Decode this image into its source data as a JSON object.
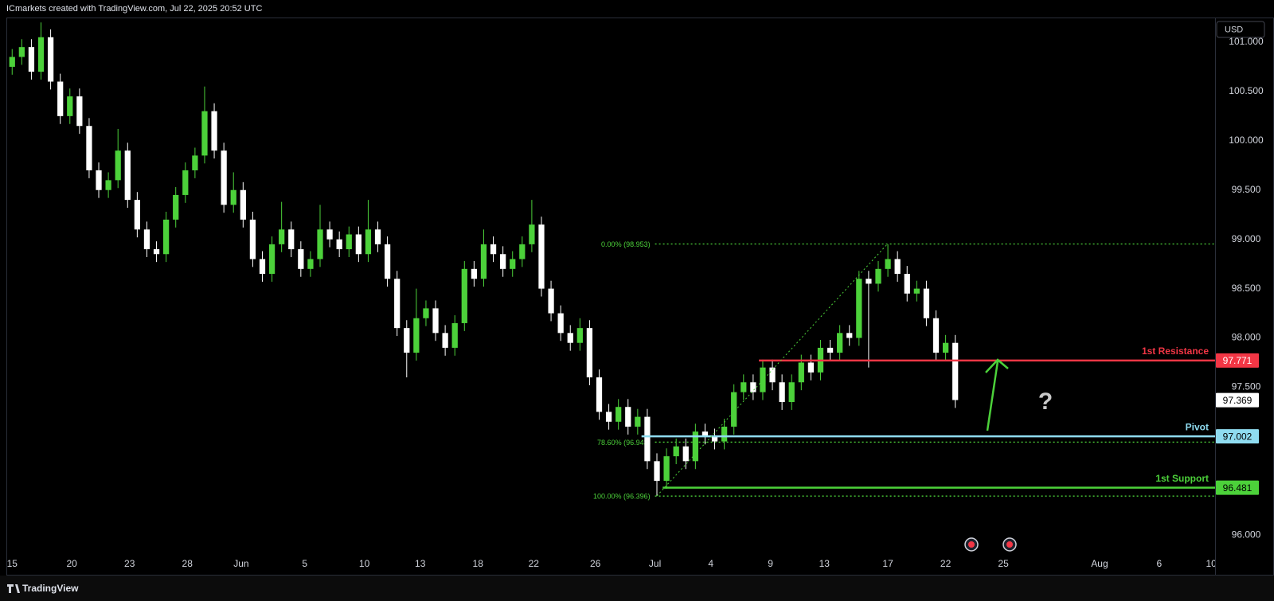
{
  "chart_data": {
    "type": "candlestick",
    "header": "ICmarkets created with TradingView.com, Jul 22, 2025 20:52 UTC",
    "brand": "TradingView",
    "currency": "USD",
    "up_color": "#4cd13a",
    "down_color": "#ffffff",
    "x": [
      0,
      0.5,
      1,
      1.5,
      2,
      2.5,
      3,
      3.5,
      4,
      4.5,
      5,
      5.5,
      6,
      6.5,
      7,
      7.5,
      8,
      8.5,
      9,
      9.5,
      10,
      10.5,
      11,
      11.5,
      12,
      12.5,
      13,
      13.5,
      14,
      14.5,
      15,
      15.5,
      16,
      16.5,
      17,
      17.5,
      18,
      18.5,
      19,
      19.5,
      20,
      20.5,
      21,
      21.5,
      22,
      22.5,
      23,
      23.5,
      24,
      24.5,
      25,
      25.5,
      26,
      26.5,
      27,
      27.5,
      28,
      28.5,
      29,
      29.5,
      30,
      30.5,
      31,
      31.5,
      32,
      32.5,
      33,
      33.5,
      34,
      34.5,
      35,
      35.5,
      36,
      36.5,
      37,
      37.5,
      38,
      38.5,
      39,
      39.5,
      40,
      40.5,
      41,
      41.5,
      42,
      42.5,
      43,
      43.5,
      44,
      44.5,
      45,
      45.5,
      46,
      46.5,
      47,
      47.5,
      48,
      48.5,
      49
    ],
    "open": [
      100.75,
      100.85,
      100.95,
      100.7,
      101.05,
      100.6,
      100.25,
      100.45,
      100.15,
      99.7,
      99.5,
      99.6,
      99.9,
      99.4,
      99.1,
      98.9,
      98.85,
      99.2,
      99.45,
      99.7,
      99.85,
      100.3,
      99.9,
      99.35,
      99.5,
      99.2,
      98.8,
      98.65,
      98.95,
      99.1,
      98.9,
      98.7,
      98.8,
      99.1,
      99.0,
      98.9,
      99.05,
      98.85,
      99.1,
      98.95,
      98.6,
      98.1,
      97.85,
      98.2,
      98.3,
      98.05,
      97.9,
      98.15,
      98.7,
      98.6,
      98.95,
      98.85,
      98.7,
      98.8,
      98.95,
      99.15,
      98.5,
      98.25,
      98.05,
      97.95,
      98.1,
      97.6,
      97.25,
      97.15,
      97.3,
      97.1,
      97.2,
      96.75,
      96.55,
      96.8,
      96.9,
      96.75,
      97.05,
      97.0,
      96.95,
      97.1,
      97.45,
      97.55,
      97.45,
      97.7,
      97.55,
      97.35,
      97.55,
      97.75,
      97.65,
      97.9,
      97.85,
      98.05,
      98.0,
      98.6,
      98.55,
      98.7,
      98.8,
      98.65,
      98.45,
      98.5,
      98.2,
      97.85,
      97.95
    ],
    "high": [
      100.93,
      101.03,
      101.03,
      101.2,
      101.13,
      100.68,
      100.53,
      100.53,
      100.23,
      99.78,
      99.68,
      100.12,
      99.98,
      99.48,
      99.18,
      98.98,
      99.28,
      99.53,
      99.78,
      99.93,
      100.55,
      100.38,
      99.98,
      99.68,
      99.58,
      99.28,
      98.88,
      99.03,
      99.38,
      99.18,
      98.98,
      98.88,
      99.35,
      99.18,
      99.08,
      99.13,
      99.13,
      99.4,
      99.18,
      99.03,
      98.68,
      98.18,
      98.5,
      98.38,
      98.38,
      98.13,
      98.23,
      98.78,
      98.78,
      99.1,
      99.03,
      98.93,
      98.88,
      99.03,
      99.4,
      99.23,
      98.58,
      98.33,
      98.13,
      98.2,
      98.18,
      97.68,
      97.33,
      97.38,
      97.38,
      97.28,
      97.28,
      96.83,
      96.88,
      96.98,
      96.98,
      97.13,
      97.13,
      97.08,
      97.18,
      97.53,
      97.63,
      97.63,
      97.78,
      97.78,
      97.63,
      97.63,
      97.83,
      97.83,
      97.98,
      97.98,
      98.13,
      98.13,
      98.68,
      98.68,
      98.78,
      98.95,
      98.88,
      98.73,
      98.58,
      98.58,
      98.28,
      98.03,
      98.03
    ],
    "low": [
      100.67,
      100.77,
      100.62,
      100.62,
      100.52,
      100.17,
      100.17,
      100.07,
      99.62,
      99.42,
      99.42,
      99.52,
      99.32,
      99.02,
      98.82,
      98.77,
      98.77,
      99.12,
      99.37,
      99.62,
      99.77,
      99.82,
      99.27,
      99.27,
      99.12,
      98.72,
      98.57,
      98.57,
      98.87,
      98.82,
      98.62,
      98.62,
      98.72,
      98.92,
      98.82,
      98.82,
      98.77,
      98.77,
      98.87,
      98.52,
      98.02,
      97.6,
      97.77,
      98.12,
      97.97,
      97.82,
      97.82,
      98.07,
      98.52,
      98.52,
      98.77,
      98.62,
      98.62,
      98.72,
      98.87,
      98.42,
      98.17,
      97.97,
      97.87,
      97.87,
      97.52,
      97.17,
      97.07,
      97.07,
      97.02,
      97.02,
      96.67,
      96.4,
      96.47,
      96.72,
      96.67,
      96.67,
      96.92,
      96.87,
      96.87,
      97.02,
      97.37,
      97.37,
      97.37,
      97.47,
      97.27,
      97.27,
      97.47,
      97.57,
      97.57,
      97.77,
      97.77,
      97.92,
      97.92,
      97.7,
      98.47,
      98.62,
      98.57,
      98.37,
      98.37,
      98.12,
      97.77,
      97.77,
      97.29
    ],
    "close": [
      100.85,
      100.95,
      100.7,
      101.05,
      100.6,
      100.25,
      100.45,
      100.15,
      99.7,
      99.5,
      99.6,
      99.9,
      99.4,
      99.1,
      98.9,
      98.85,
      99.2,
      99.45,
      99.7,
      99.85,
      100.3,
      99.9,
      99.35,
      99.5,
      99.2,
      98.8,
      98.65,
      98.95,
      99.1,
      98.9,
      98.7,
      98.8,
      99.1,
      99.0,
      98.9,
      99.05,
      98.85,
      99.1,
      98.95,
      98.6,
      98.1,
      97.85,
      98.2,
      98.3,
      98.05,
      97.9,
      98.15,
      98.7,
      98.6,
      98.95,
      98.85,
      98.7,
      98.8,
      98.95,
      99.15,
      98.5,
      98.25,
      98.05,
      97.95,
      98.1,
      97.6,
      97.25,
      97.15,
      97.3,
      97.1,
      97.2,
      96.75,
      96.55,
      96.8,
      96.9,
      96.75,
      97.05,
      97.0,
      96.95,
      97.1,
      97.45,
      97.55,
      97.45,
      97.7,
      97.55,
      97.35,
      97.55,
      97.75,
      97.65,
      97.9,
      97.85,
      98.05,
      98.0,
      98.6,
      98.55,
      98.7,
      98.8,
      98.65,
      98.45,
      98.5,
      98.2,
      97.85,
      97.95,
      97.37
    ],
    "xlim": [
      -0.3,
      62.5
    ],
    "xticks": [
      {
        "value": 0,
        "label": "15"
      },
      {
        "value": 3.1,
        "label": "20"
      },
      {
        "value": 6.1,
        "label": "23"
      },
      {
        "value": 9.1,
        "label": "28"
      },
      {
        "value": 11.9,
        "label": "Jun"
      },
      {
        "value": 15.2,
        "label": "5"
      },
      {
        "value": 18.3,
        "label": "10"
      },
      {
        "value": 21.2,
        "label": "13"
      },
      {
        "value": 24.2,
        "label": "18"
      },
      {
        "value": 27.1,
        "label": "22"
      },
      {
        "value": 30.3,
        "label": "26"
      },
      {
        "value": 33.4,
        "label": "Jul"
      },
      {
        "value": 36.3,
        "label": "4"
      },
      {
        "value": 39.4,
        "label": "9"
      },
      {
        "value": 42.2,
        "label": "13"
      },
      {
        "value": 45.5,
        "label": "17"
      },
      {
        "value": 48.5,
        "label": "22"
      },
      {
        "value": 51.5,
        "label": "25"
      },
      {
        "value": 56.5,
        "label": "Aug"
      },
      {
        "value": 59.6,
        "label": "6"
      },
      {
        "value": 62.3,
        "label": "10"
      }
    ],
    "ylim": [
      95.8,
      101.25
    ],
    "yticks": [
      {
        "value": 96,
        "label": "96.000"
      },
      {
        "value": 97.5,
        "label": "97.500"
      },
      {
        "value": 98,
        "label": "98.000"
      },
      {
        "value": 98.5,
        "label": "98.500"
      },
      {
        "value": 99,
        "label": "99.000"
      },
      {
        "value": 99.5,
        "label": "99.500"
      },
      {
        "value": 100,
        "label": "100.000"
      },
      {
        "value": 100.5,
        "label": "100.500"
      },
      {
        "value": 101,
        "label": "101.000"
      }
    ],
    "levels": [
      {
        "name": "1st Resistance",
        "value": 97.771,
        "start": 38.8,
        "color": "#f23645",
        "text_color": "#ffffff"
      },
      {
        "name": "Pivot",
        "value": 97.002,
        "start": 32.7,
        "color": "#8fdcf0",
        "text_color": "#000000"
      },
      {
        "name": "1st Support",
        "value": 96.481,
        "start": 33.8,
        "color": "#4cd13a",
        "text_color": "#000000"
      }
    ],
    "fib_start": 33.4,
    "fib_color": "#4cd13a",
    "fib_levels": [
      {
        "label": "0.00% (98.953)",
        "value": 98.953
      },
      {
        "label": "78.60% (96.943)",
        "value": 96.943
      },
      {
        "label": "100.00% (96.396)",
        "value": 96.396
      }
    ],
    "last_price": 97.369,
    "annotation": "?"
  }
}
